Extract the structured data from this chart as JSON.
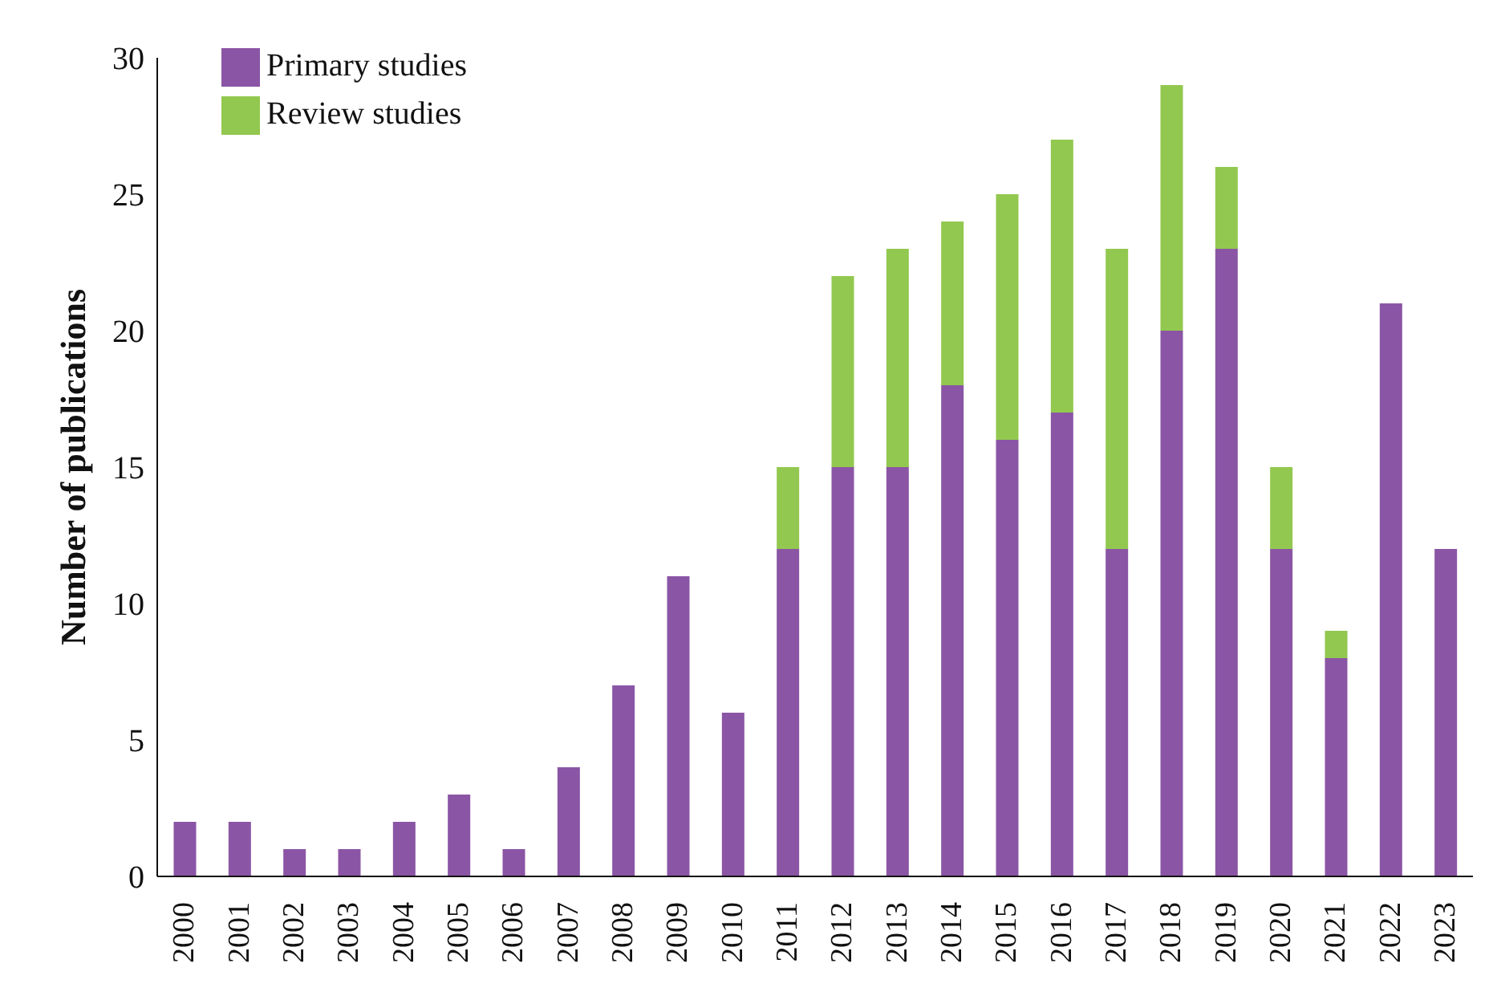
{
  "chart_data": {
    "type": "bar",
    "stacked": true,
    "ylabel": "Number of publications",
    "categories": [
      "2000",
      "2001",
      "2002",
      "2003",
      "2004",
      "2005",
      "2006",
      "2007",
      "2008",
      "2009",
      "2010",
      "2011",
      "2012",
      "2013",
      "2014",
      "2015",
      "2016",
      "2017",
      "2018",
      "2019",
      "2020",
      "2021",
      "2022",
      "2023"
    ],
    "series": [
      {
        "name": "Primary studies",
        "color": "#8b55a5",
        "values": [
          2,
          2,
          1,
          1,
          2,
          3,
          1,
          4,
          7,
          11,
          6,
          12,
          15,
          15,
          18,
          16,
          17,
          12,
          20,
          23,
          12,
          8,
          21,
          12
        ]
      },
      {
        "name": "Review studies",
        "color": "#92c84f",
        "values": [
          0,
          0,
          0,
          0,
          0,
          0,
          0,
          0,
          0,
          0,
          0,
          3,
          7,
          8,
          6,
          9,
          10,
          11,
          9,
          3,
          3,
          1,
          0,
          0
        ]
      }
    ],
    "ylim": [
      0,
      30
    ],
    "yticks": [
      0,
      5,
      10,
      15,
      20,
      25,
      30
    ],
    "grid": false,
    "legend": "top left"
  }
}
